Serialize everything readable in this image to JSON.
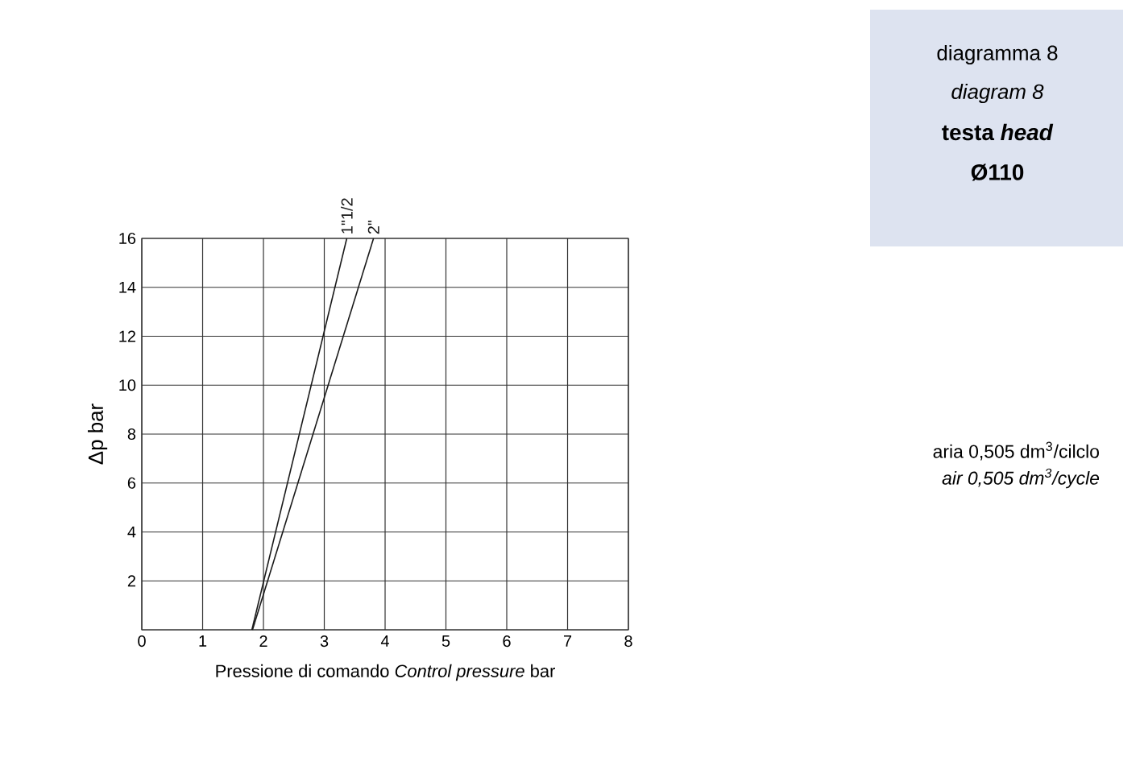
{
  "chart_data": {
    "type": "line",
    "title": "diagramma 8",
    "subtitle": "diagram 8",
    "annotations": [
      "testa *head*",
      "Ø110",
      "aria 0,505 dm$^{3}$/cilclo",
      "air 0,505 dm$^{3}$/cycle"
    ],
    "xlabel": "Pressione di comando *Control pressure* bar",
    "ylabel": "Δp bar",
    "xlim": [
      0,
      8
    ],
    "ylim": [
      0,
      16
    ],
    "xticks": [
      0,
      1,
      2,
      3,
      4,
      5,
      6,
      7,
      8
    ],
    "yticks": [
      {
        "value": 0,
        "label": null
      },
      2,
      4,
      6,
      8,
      10,
      12,
      14,
      16
    ],
    "grid": true,
    "legend": false,
    "marker": "none",
    "line_style": "solid",
    "series": [
      {
        "name": "1\"1/2",
        "color": "#1a1a1a",
        "x": [
          1.81,
          3.37
        ],
        "values": [
          0,
          16
        ]
      },
      {
        "name": "2\"",
        "color": "#1a1a1a",
        "x": [
          1.82,
          3.81
        ],
        "values": [
          0,
          16
        ]
      }
    ]
  }
}
